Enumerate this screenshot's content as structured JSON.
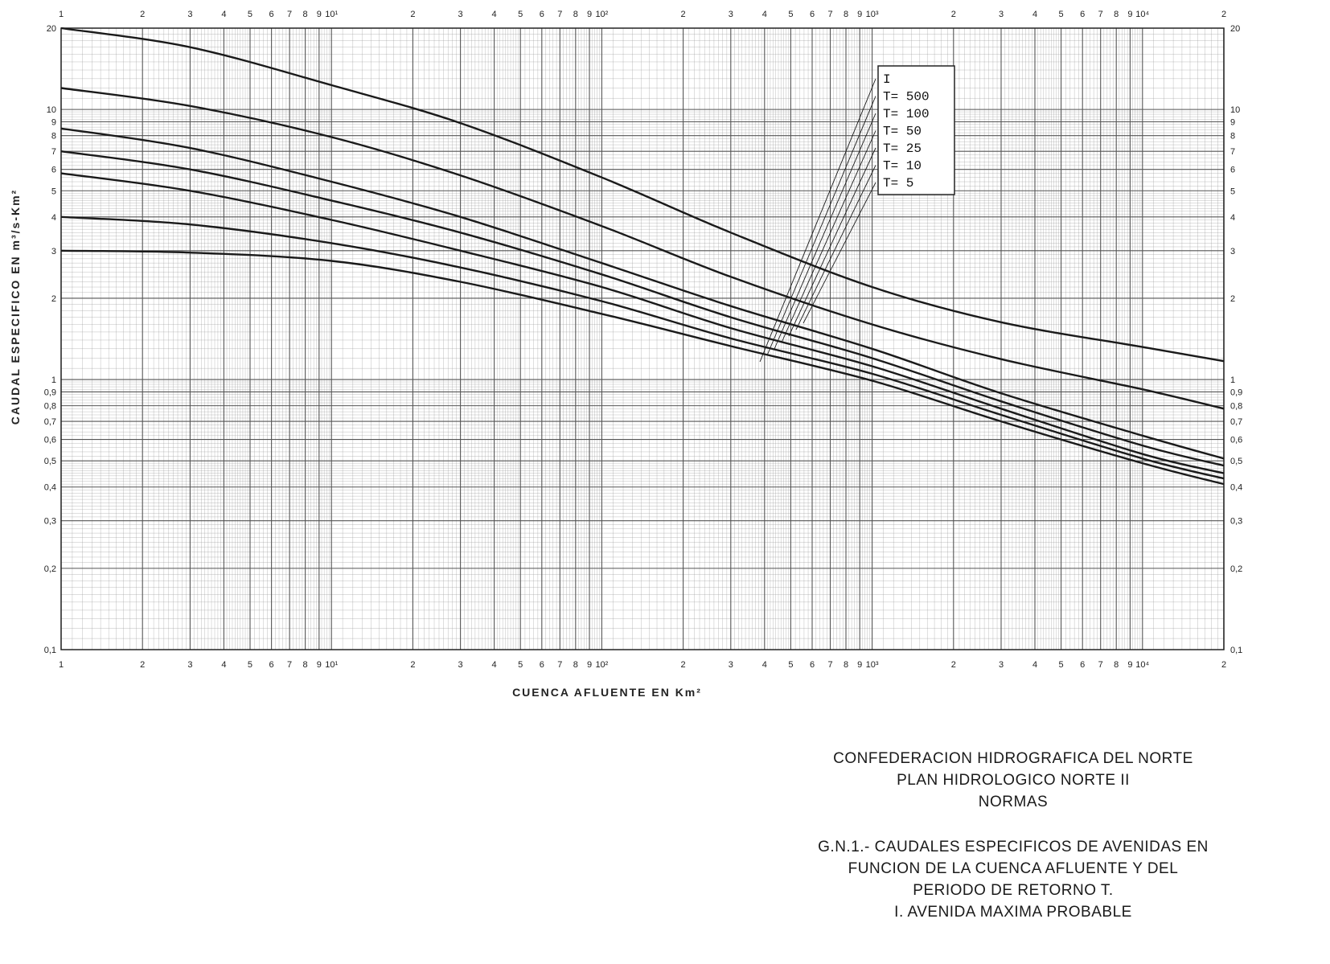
{
  "chart_data": {
    "type": "line",
    "x_scale": "log",
    "y_scale": "log",
    "xlim": [
      1,
      20000
    ],
    "ylim": [
      0.1,
      20
    ],
    "grid": true,
    "xlabel": "CUENCA AFLUENTE EN Km²",
    "ylabel": "CAUDAL ESPECIFICO EN m³/s-Km²",
    "x_ticks_bottom": [
      "1",
      "2",
      "3",
      "4",
      "5",
      "6",
      "7",
      "8",
      "9",
      "10¹",
      "2",
      "3",
      "4",
      "5",
      "6",
      "7",
      "8",
      "9",
      "10²",
      "2",
      "3",
      "4",
      "5",
      "6",
      "7",
      "8",
      "9",
      "10³",
      "2",
      "3",
      "4",
      "5",
      "6",
      "7",
      "8",
      "9",
      "10⁴",
      "2"
    ],
    "x_ticks_top": [
      "1",
      "2",
      "3",
      "4",
      "5",
      "6",
      "7",
      "8",
      "9",
      "10¹",
      "2",
      "3",
      "4",
      "5",
      "6",
      "7",
      "8",
      "9",
      "10²",
      "2",
      "3",
      "4",
      "5",
      "6",
      "7",
      "8",
      "9",
      "10³",
      "2",
      "3",
      "4",
      "5",
      "6",
      "7",
      "8",
      "9",
      "10⁴",
      "2"
    ],
    "y_ticks_left": [
      "0,1",
      "0,2",
      "0,3",
      "0,4",
      "0,5",
      "0,6",
      "0,7",
      "0,8",
      "0,9",
      "1",
      "2",
      "3",
      "4",
      "5",
      "6",
      "7",
      "8",
      "9",
      "10",
      "20"
    ],
    "y_ticks_right": [
      "0,1",
      "0,2",
      "0,3",
      "0,4",
      "0,5",
      "0,6",
      "0,7",
      "0,8",
      "0,9",
      "1",
      "2",
      "3",
      "4",
      "5",
      "6",
      "7",
      "8",
      "9",
      "10",
      "20"
    ],
    "series": [
      {
        "name": "I",
        "x": [
          1,
          3,
          10,
          30,
          100,
          300,
          1000,
          3000,
          10000,
          20000
        ],
        "y": [
          20,
          17,
          12.3,
          8.9,
          5.6,
          3.5,
          2.2,
          1.63,
          1.32,
          1.17
        ]
      },
      {
        "name": "T= 500",
        "x": [
          1,
          3,
          10,
          30,
          100,
          300,
          1000,
          3000,
          10000,
          20000
        ],
        "y": [
          12,
          10.3,
          7.9,
          5.7,
          3.7,
          2.4,
          1.6,
          1.19,
          0.92,
          0.78
        ]
      },
      {
        "name": "T= 100",
        "x": [
          1,
          3,
          10,
          30,
          100,
          300,
          1000,
          3000,
          10000,
          20000
        ],
        "y": [
          8.5,
          7.2,
          5.4,
          4.0,
          2.7,
          1.87,
          1.3,
          0.89,
          0.62,
          0.51
        ]
      },
      {
        "name": "T= 50",
        "x": [
          1,
          3,
          10,
          30,
          100,
          300,
          1000,
          3000,
          10000,
          20000
        ],
        "y": [
          7.0,
          6.0,
          4.6,
          3.5,
          2.45,
          1.7,
          1.2,
          0.83,
          0.57,
          0.48
        ]
      },
      {
        "name": "T= 25",
        "x": [
          1,
          3,
          10,
          30,
          100,
          300,
          1000,
          3000,
          10000,
          20000
        ],
        "y": [
          5.8,
          5.0,
          3.9,
          3.0,
          2.2,
          1.55,
          1.12,
          0.78,
          0.53,
          0.45
        ]
      },
      {
        "name": "T= 10",
        "x": [
          1,
          3,
          10,
          30,
          100,
          300,
          1000,
          3000,
          10000,
          20000
        ],
        "y": [
          4.0,
          3.75,
          3.2,
          2.6,
          1.95,
          1.42,
          1.05,
          0.74,
          0.51,
          0.43
        ]
      },
      {
        "name": "T= 5",
        "x": [
          1,
          3,
          10,
          30,
          100,
          300,
          1000,
          3000,
          10000,
          20000
        ],
        "y": [
          3.0,
          2.95,
          2.75,
          2.3,
          1.75,
          1.33,
          0.99,
          0.7,
          0.49,
          0.41
        ]
      }
    ],
    "legend": {
      "position": "top-right",
      "entries": [
        "I",
        "T= 500",
        "T= 100",
        "T= 50",
        "T= 25",
        "T= 10",
        "T= 5"
      ]
    }
  },
  "caption": {
    "org_lines": [
      "CONFEDERACION HIDROGRAFICA DEL NORTE",
      "PLAN HIDROLOGICO NORTE II",
      "NORMAS"
    ],
    "figure_lines": [
      "G.N.1.- CAUDALES ESPECIFICOS DE AVENIDAS EN",
      "FUNCION DE LA CUENCA AFLUENTE Y DEL",
      "PERIODO DE RETORNO T.",
      "I. AVENIDA MAXIMA PROBABLE"
    ]
  },
  "colors": {
    "ink": "#1a1a1a",
    "grid": "#8a8a8a",
    "paper": "#ffffff"
  }
}
